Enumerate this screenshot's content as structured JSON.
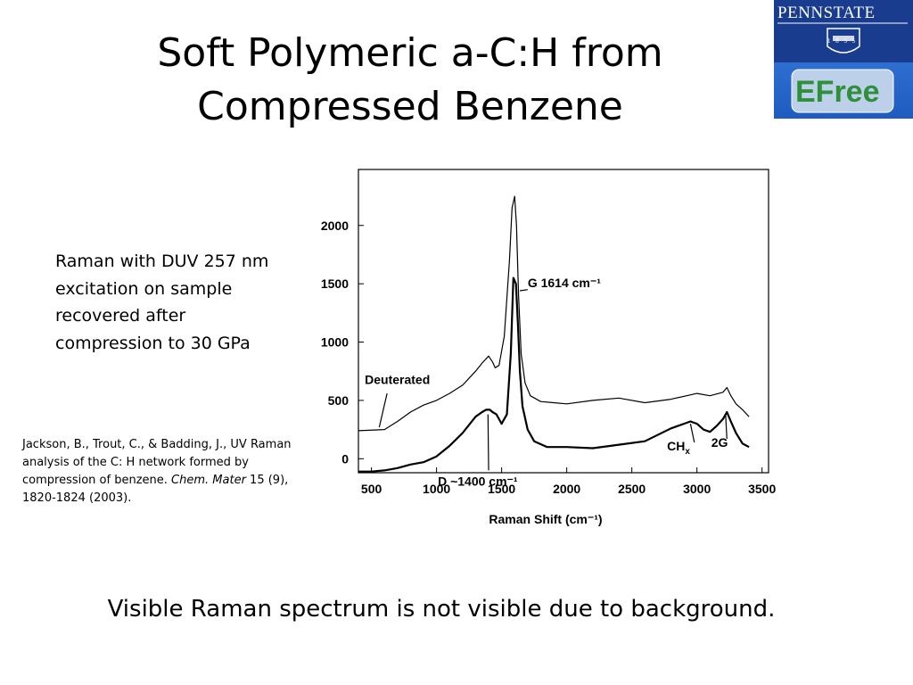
{
  "title": {
    "line1": "Soft Polymeric a-C:H from",
    "line2": "Compressed Benzene"
  },
  "caption": {
    "line1": "Raman with DUV 257 nm",
    "line2": "excitation on sample",
    "line3": "recovered after",
    "line4": "compression to 30 GPa"
  },
  "citation": {
    "authors": "Jackson, B., Trout, C., & Badding, J., UV Raman analysis of the C: H network formed by compression of benzene. ",
    "journal": "Chem. Mater",
    "details": " 15 (9), 1820-1824 (2003)."
  },
  "footer": "Visible Raman spectrum is not visible due to background.",
  "logos": {
    "wordmark": "PENNSTATE",
    "year": "1 8 5 5",
    "efree": "EFree"
  },
  "chart_data": {
    "type": "line",
    "xlabel": "Raman Shift (cm⁻¹)",
    "ylabel": "",
    "xlim": [
      400,
      3550
    ],
    "ylim": [
      -120,
      2480
    ],
    "xticks": [
      500,
      1000,
      1500,
      2000,
      2500,
      3000,
      3500
    ],
    "yticks": [
      0,
      500,
      1000,
      1500,
      2000
    ],
    "grid": false,
    "series": [
      {
        "name": "Deuterated",
        "x": [
          400,
          600,
          700,
          800,
          900,
          1000,
          1100,
          1200,
          1300,
          1350,
          1400,
          1430,
          1450,
          1480,
          1520,
          1560,
          1580,
          1600,
          1614,
          1630,
          1650,
          1680,
          1720,
          1800,
          1900,
          2000,
          2200,
          2400,
          2600,
          2800,
          3000,
          3100,
          3200,
          3230,
          3260,
          3300,
          3350,
          3400
        ],
        "y": [
          240,
          250,
          320,
          400,
          460,
          500,
          560,
          630,
          750,
          820,
          880,
          830,
          780,
          800,
          1050,
          1700,
          2150,
          2250,
          2000,
          1400,
          900,
          650,
          540,
          490,
          480,
          470,
          500,
          520,
          480,
          510,
          560,
          540,
          570,
          610,
          540,
          470,
          420,
          360
        ]
      },
      {
        "name": "",
        "x": [
          400,
          500,
          600,
          700,
          800,
          900,
          1000,
          1100,
          1200,
          1300,
          1350,
          1380,
          1410,
          1430,
          1460,
          1500,
          1540,
          1570,
          1590,
          1610,
          1625,
          1640,
          1660,
          1700,
          1750,
          1850,
          2000,
          2200,
          2400,
          2600,
          2800,
          2900,
          2950,
          3000,
          3050,
          3100,
          3150,
          3200,
          3230,
          3260,
          3300,
          3350,
          3400
        ],
        "y": [
          -110,
          -110,
          -100,
          -80,
          -50,
          -30,
          20,
          110,
          220,
          360,
          400,
          420,
          420,
          400,
          380,
          300,
          380,
          900,
          1550,
          1500,
          1150,
          750,
          450,
          250,
          150,
          100,
          100,
          90,
          120,
          150,
          260,
          300,
          320,
          300,
          250,
          230,
          280,
          340,
          400,
          320,
          220,
          130,
          100
        ]
      }
    ],
    "annotations": [
      {
        "text": "Deuterated",
        "x": 620,
        "y": 640
      },
      {
        "text": "G 1614 cm⁻¹",
        "x": 1614,
        "y": 1470
      },
      {
        "text": "D ~1400 cm⁻¹",
        "x": 1400,
        "y": -190
      },
      {
        "text": "CH",
        "sub": "x",
        "x": 2950,
        "y": 70
      },
      {
        "text": "2G",
        "x": 3230,
        "y": 100
      }
    ]
  }
}
